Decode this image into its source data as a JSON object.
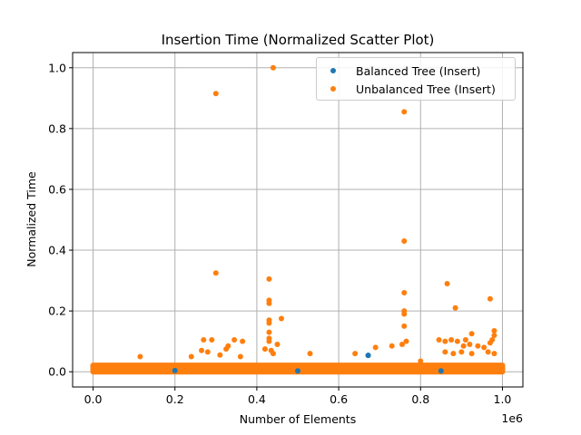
{
  "chart_data": {
    "type": "scatter",
    "title": "Insertion Time (Normalized Scatter Plot)",
    "xlabel": "Number of Elements",
    "ylabel": "Normalized Time",
    "x_scale_label": "1e6",
    "xlim": [
      -0.05,
      1.05
    ],
    "ylim": [
      -0.05,
      1.05
    ],
    "x_ticks": [
      "0.0",
      "0.2",
      "0.4",
      "0.6",
      "0.8",
      "1.0"
    ],
    "y_ticks": [
      "0.0",
      "0.2",
      "0.4",
      "0.6",
      "0.8",
      "1.0"
    ],
    "grid": true,
    "legend_position": "top-right",
    "series": [
      {
        "name": "Balanced Tree (Insert)",
        "color": "#1f77b4",
        "points": [
          [
            0.672,
            0.054
          ],
          [
            0.5,
            0.003
          ],
          [
            0.2,
            0.004
          ],
          [
            0.85,
            0.003
          ]
        ]
      },
      {
        "name": "Unbalanced Tree (Insert)",
        "color": "#ff7f0e",
        "baseline_band": {
          "x_range": [
            0.0,
            1.0
          ],
          "y_max_typical": 0.03
        },
        "points": [
          [
            0.44,
            1.0
          ],
          [
            0.3,
            0.915
          ],
          [
            0.76,
            0.855
          ],
          [
            0.76,
            0.43
          ],
          [
            0.3,
            0.325
          ],
          [
            0.43,
            0.305
          ],
          [
            0.43,
            0.235
          ],
          [
            0.43,
            0.225
          ],
          [
            0.43,
            0.17
          ],
          [
            0.43,
            0.16
          ],
          [
            0.46,
            0.175
          ],
          [
            0.76,
            0.26
          ],
          [
            0.76,
            0.2
          ],
          [
            0.76,
            0.19
          ],
          [
            0.76,
            0.15
          ],
          [
            0.865,
            0.29
          ],
          [
            0.885,
            0.21
          ],
          [
            0.97,
            0.24
          ],
          [
            0.98,
            0.135
          ],
          [
            0.98,
            0.12
          ],
          [
            0.975,
            0.105
          ],
          [
            0.97,
            0.095
          ],
          [
            0.43,
            0.13
          ],
          [
            0.43,
            0.11
          ],
          [
            0.43,
            0.1
          ],
          [
            0.27,
            0.105
          ],
          [
            0.29,
            0.105
          ],
          [
            0.33,
            0.085
          ],
          [
            0.345,
            0.105
          ],
          [
            0.365,
            0.1
          ],
          [
            0.325,
            0.075
          ],
          [
            0.45,
            0.09
          ],
          [
            0.765,
            0.1
          ],
          [
            0.755,
            0.09
          ],
          [
            0.73,
            0.085
          ],
          [
            0.69,
            0.08
          ],
          [
            0.845,
            0.105
          ],
          [
            0.86,
            0.1
          ],
          [
            0.875,
            0.105
          ],
          [
            0.89,
            0.1
          ],
          [
            0.905,
            0.085
          ],
          [
            0.91,
            0.105
          ],
          [
            0.92,
            0.09
          ],
          [
            0.925,
            0.125
          ],
          [
            0.94,
            0.085
          ],
          [
            0.955,
            0.08
          ],
          [
            0.965,
            0.065
          ],
          [
            0.98,
            0.06
          ],
          [
            0.86,
            0.065
          ],
          [
            0.88,
            0.06
          ],
          [
            0.9,
            0.065
          ],
          [
            0.925,
            0.06
          ],
          [
            0.115,
            0.05
          ],
          [
            0.24,
            0.05
          ],
          [
            0.53,
            0.06
          ],
          [
            0.64,
            0.06
          ],
          [
            0.8,
            0.035
          ],
          [
            0.265,
            0.07
          ],
          [
            0.28,
            0.065
          ],
          [
            0.31,
            0.055
          ],
          [
            0.36,
            0.05
          ],
          [
            0.42,
            0.075
          ],
          [
            0.435,
            0.07
          ],
          [
            0.44,
            0.06
          ]
        ]
      }
    ]
  }
}
